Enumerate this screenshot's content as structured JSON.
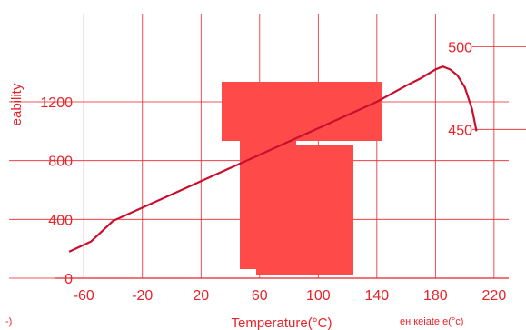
{
  "chart_data": {
    "type": "line",
    "xlabel": "Temperature(°C)",
    "ylabel_left": "eability",
    "ylabel_right": "",
    "x_ticks": [
      "-60",
      "-20",
      "20",
      "60",
      "100",
      "140",
      "180",
      "220"
    ],
    "y_left_ticks": [
      "0",
      "400",
      "800",
      "1200"
    ],
    "y_right_ticks": [
      "450",
      "500"
    ],
    "xlim": [
      -80,
      230
    ],
    "ylim_left": [
      0,
      1800
    ],
    "ylim_right": [
      360,
      520
    ],
    "series": [
      {
        "axis": "left",
        "color": "#c8102e",
        "x": [
          -70,
          -55,
          -40,
          -20,
          0,
          20,
          40,
          60,
          80,
          100,
          120,
          140,
          160,
          170,
          180,
          185,
          190,
          195,
          200,
          205,
          208
        ],
        "y": [
          180,
          250,
          390,
          480,
          570,
          660,
          750,
          840,
          930,
          1020,
          1110,
          1200,
          1310,
          1360,
          1420,
          1440,
          1420,
          1380,
          1300,
          1150,
          1000
        ]
      }
    ],
    "footer_left": "-)",
    "footer_right": "ен кеіаtе  е(°с)",
    "grid": true,
    "legend": "none"
  }
}
